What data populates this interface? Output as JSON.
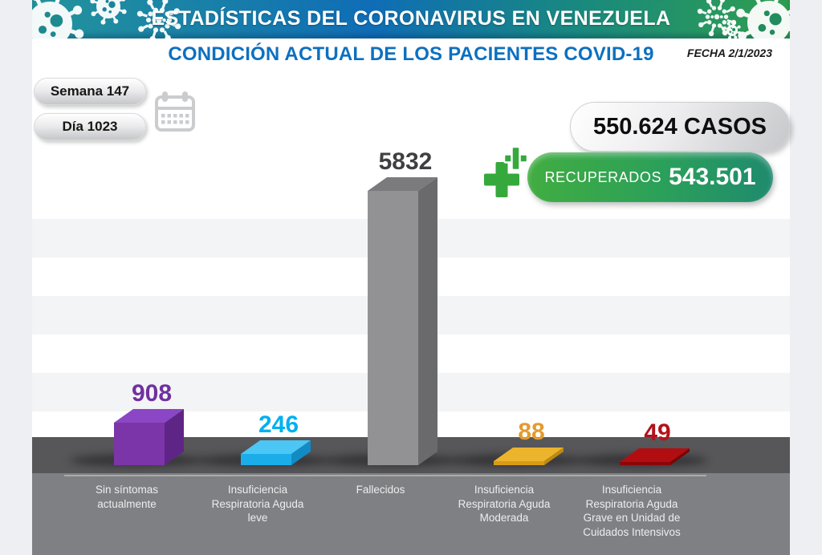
{
  "header": {
    "title": "ESTADÍSTICAS DEL CORONAVIRUS EN VENEZUELA"
  },
  "page_title": "CONDICIÓN ACTUAL DE LOS PACIENTES COVID-19",
  "date_label": "FECHA 2/1/2023",
  "badges": {
    "week": "Semana 147",
    "day": "Día 1023",
    "cases": "550.624 CASOS",
    "recovered_label": "RECUPERADOS",
    "recovered_value": "543.501"
  },
  "chart_data": {
    "type": "bar",
    "title": "CONDICIÓN ACTUAL DE LOS PACIENTES COVID-19",
    "categories": [
      "Sin síntomas actualmente",
      "Insuficiencia Respiratoria Aguda leve",
      "Fallecidos",
      "Insuficiencia Respiratoria Aguda Moderada",
      "Insuficiencia Respiratoria Aguda Grave en Unidad de Cuidados Intensivos"
    ],
    "label_lines": [
      [
        "Sin síntomas",
        "actualmente"
      ],
      [
        "Insuficiencia",
        "Respiratoria Aguda",
        "leve"
      ],
      [
        "Fallecidos"
      ],
      [
        "Insuficiencia",
        "Respiratoria Aguda",
        "Moderada"
      ],
      [
        "Insuficiencia",
        "Respiratoria Aguda",
        "Grave en Unidad de",
        "Cuidados Intensivos"
      ]
    ],
    "values": [
      908,
      246,
      5832,
      88,
      49
    ],
    "value_labels": [
      "908",
      "246",
      "5832",
      "88",
      "49"
    ],
    "bar_colors": [
      {
        "front": "#7c35a8",
        "top": "#8a46c4",
        "side": "#5e2586"
      },
      {
        "front": "#1badea",
        "top": "#4cc6f4",
        "side": "#128bc5"
      },
      {
        "front": "#929294",
        "top": "#7b7b7e",
        "side": "#6a6a6d"
      },
      {
        "front": "#d89b14",
        "top": "#ecb42c",
        "side": "#bd8a10"
      },
      {
        "front": "#8e0508",
        "top": "#b20e12",
        "side": "#7a0406"
      }
    ],
    "value_label_colors": [
      "#7030a0",
      "#00b0f0",
      "#3f3f42",
      "#e39b2d",
      "#b3121b"
    ],
    "ylim": [
      0,
      5832
    ],
    "grid": false,
    "legend": false
  },
  "colors": {
    "header_gradient": [
      "#23949b",
      "#0f6db6",
      "#19897f",
      "#2f9e4f"
    ],
    "subtitle_blue": "#0d70c0",
    "stripe_gray": "#f3f4f6",
    "floor_dark": "#57575a",
    "floor_light": "#7f8083",
    "baseline_line": "#aaabad",
    "recovered_green_left": "#41ad41",
    "recovered_green_right": "#1f8a6e",
    "cross_green": "#35a93c",
    "icon_gray": "#cbccce"
  }
}
